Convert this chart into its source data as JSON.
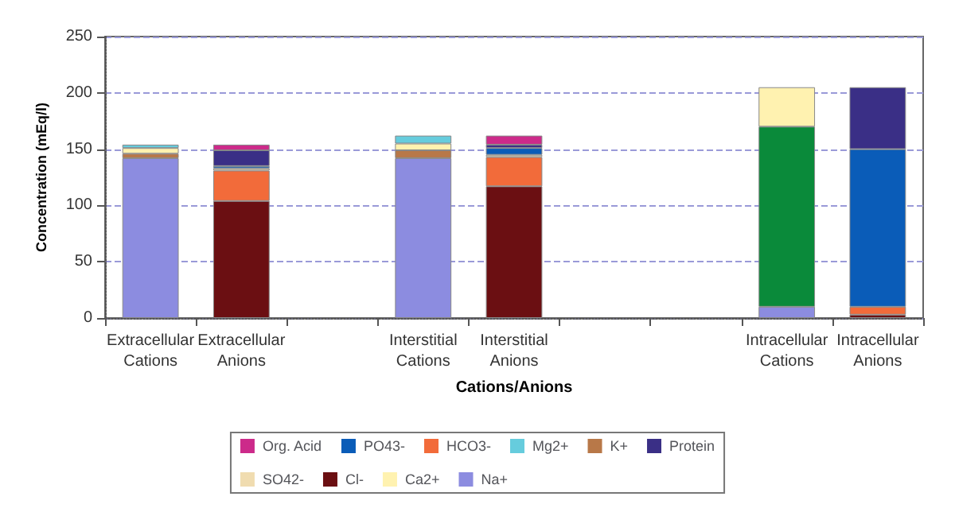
{
  "chart_data": {
    "type": "bar",
    "stacked": true,
    "xlabel": "Cations/Anions",
    "ylabel": "Concentration (mEq/l)",
    "categories": [
      "Extracellular\nCations",
      "Extracellular\nAnions",
      null,
      "Interstitial\nCations",
      "Interstitial\nAnions",
      null,
      null,
      "Intracellular\nCations",
      "Intracellular\nAnions"
    ],
    "ylim": [
      0,
      250
    ],
    "yticks": [
      0,
      50,
      100,
      150,
      200,
      250
    ],
    "grid": "y",
    "legend": "bottom",
    "series": [
      {
        "name": "Na+",
        "color": "#8c8ce0",
        "values": [
          142,
          null,
          null,
          142,
          null,
          null,
          null,
          10,
          null
        ]
      },
      {
        "name": "K+",
        "color": "#b87848",
        "colors": [
          "#b87848",
          "#b87848",
          "#b87848",
          "#b87848",
          "#b87848",
          "#b87848",
          "#b87848",
          "#0a8a3a",
          "#b87848"
        ],
        "values": [
          4,
          null,
          null,
          7,
          null,
          null,
          null,
          160,
          null
        ]
      },
      {
        "name": "Ca2+",
        "color": "#fff2b0",
        "values": [
          5,
          null,
          null,
          6,
          null,
          null,
          null,
          35,
          null
        ]
      },
      {
        "name": "Mg2+",
        "color": "#66ccdd",
        "values": [
          3,
          null,
          null,
          7,
          null,
          null,
          null,
          null,
          null
        ]
      },
      {
        "name": "Cl-",
        "color": "#6b0f12",
        "values": [
          null,
          104,
          null,
          null,
          117,
          null,
          null,
          null,
          3
        ]
      },
      {
        "name": "HCO3-",
        "color": "#f26b3a",
        "values": [
          null,
          27,
          null,
          null,
          26,
          null,
          null,
          null,
          7
        ]
      },
      {
        "name": "SO42-",
        "color": "#f0dcb0",
        "values": [
          null,
          2,
          null,
          null,
          2,
          null,
          null,
          null,
          null
        ]
      },
      {
        "name": "PO43-",
        "color": "#0a5cb8",
        "values": [
          null,
          2,
          null,
          null,
          6,
          null,
          null,
          null,
          140
        ]
      },
      {
        "name": "Protein",
        "color": "#3a2f86",
        "values": [
          null,
          14,
          null,
          null,
          3,
          null,
          null,
          null,
          55
        ]
      },
      {
        "name": "Org. Acid",
        "color": "#cc2a8a",
        "values": [
          null,
          5,
          null,
          null,
          8,
          null,
          null,
          null,
          null
        ]
      }
    ]
  }
}
